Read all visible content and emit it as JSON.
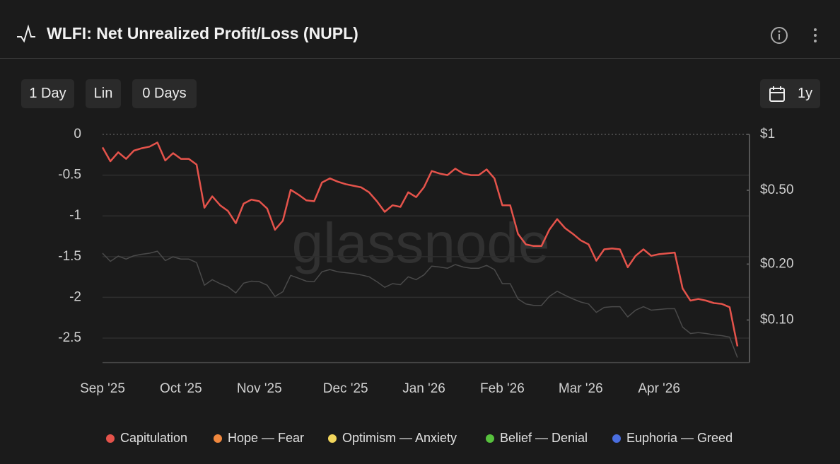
{
  "header": {
    "title": "WLFI: Net Unrealized Profit/Loss (NUPL)"
  },
  "controls": {
    "resolution": "1 Day",
    "scale": "Lin",
    "moving_average": "0 Days",
    "range": "1y"
  },
  "chart_data": {
    "type": "line",
    "watermark": "glassnode",
    "categories": [
      "Sep '25",
      null,
      null,
      null,
      null,
      null,
      null,
      null,
      null,
      null,
      "Oct '25",
      null,
      null,
      null,
      null,
      null,
      null,
      null,
      null,
      null,
      "Nov '25",
      null,
      null,
      null,
      null,
      null,
      null,
      null,
      null,
      null,
      null,
      "Dec '25",
      null,
      null,
      null,
      null,
      null,
      null,
      null,
      null,
      null,
      "Jan '26",
      null,
      null,
      null,
      null,
      null,
      null,
      null,
      null,
      null,
      "Feb '26",
      null,
      null,
      null,
      null,
      null,
      null,
      null,
      null,
      null,
      "Mar '26",
      null,
      null,
      null,
      null,
      null,
      null,
      null,
      null,
      null,
      "Apr '26",
      null,
      null,
      null,
      null,
      null,
      null,
      null,
      null,
      null,
      null
    ],
    "series": [
      {
        "color": "#e5534b",
        "values": [
          -0.16,
          -0.33,
          -0.22,
          -0.3,
          -0.2,
          -0.17,
          -0.15,
          -0.1,
          -0.32,
          -0.23,
          -0.3,
          -0.3,
          -0.37,
          -0.9,
          -0.76,
          -0.87,
          -0.94,
          -1.09,
          -0.85,
          -0.8,
          -0.82,
          -0.91,
          -1.17,
          -1.06,
          -0.68,
          -0.74,
          -0.81,
          -0.82,
          -0.59,
          -0.54,
          -0.58,
          -0.61,
          -0.63,
          -0.65,
          -0.71,
          -0.82,
          -0.95,
          -0.87,
          -0.89,
          -0.71,
          -0.77,
          -0.65,
          -0.45,
          -0.48,
          -0.5,
          -0.42,
          -0.48,
          -0.5,
          -0.5,
          -0.43,
          -0.54,
          -0.87,
          -0.87,
          -1.22,
          -1.35,
          -1.37,
          -1.37,
          -1.17,
          -1.04,
          -1.15,
          -1.22,
          -1.3,
          -1.35,
          -1.55,
          -1.41,
          -1.4,
          -1.41,
          -1.63,
          -1.49,
          -1.41,
          -1.49,
          -1.47,
          -1.46,
          -1.45,
          -1.89,
          -2.04,
          -2.02,
          -2.04,
          -2.07,
          -2.08,
          -2.12,
          -2.6
        ]
      },
      {
        "color": "#4a4a4a",
        "axis": "y2",
        "values": [
          0.229,
          0.207,
          0.221,
          0.213,
          0.222,
          0.226,
          0.229,
          0.235,
          0.209,
          0.219,
          0.213,
          0.213,
          0.204,
          0.154,
          0.165,
          0.157,
          0.151,
          0.14,
          0.158,
          0.162,
          0.161,
          0.154,
          0.134,
          0.142,
          0.174,
          0.168,
          0.162,
          0.161,
          0.182,
          0.187,
          0.182,
          0.18,
          0.178,
          0.175,
          0.171,
          0.161,
          0.15,
          0.157,
          0.155,
          0.171,
          0.165,
          0.175,
          0.195,
          0.193,
          0.19,
          0.199,
          0.193,
          0.19,
          0.19,
          0.197,
          0.187,
          0.157,
          0.157,
          0.13,
          0.122,
          0.12,
          0.12,
          0.134,
          0.143,
          0.136,
          0.13,
          0.125,
          0.122,
          0.11,
          0.117,
          0.118,
          0.118,
          0.104,
          0.113,
          0.118,
          0.113,
          0.114,
          0.115,
          0.115,
          0.0916,
          0.0846,
          0.0856,
          0.0846,
          0.0832,
          0.0824,
          0.0809,
          0.0628
        ]
      }
    ],
    "ylim": [
      -2.8,
      0
    ],
    "yticks": [
      0,
      -0.5,
      -1,
      -1.5,
      -2,
      -2.5
    ],
    "y2lim": [
      0.059,
      1
    ],
    "y2scale": "log",
    "y2ticks": [
      {
        "value": 1,
        "label": "$1"
      },
      {
        "value": 0.5,
        "label": "$0.50"
      },
      {
        "value": 0.2,
        "label": "$0.20"
      },
      {
        "value": 0.1,
        "label": "$0.10"
      }
    ],
    "grid": true,
    "legend_position": "bottom",
    "legend": [
      {
        "name": "Capitulation",
        "color": "#e5534b"
      },
      {
        "name": "Hope — Fear",
        "color": "#f0883e"
      },
      {
        "name": "Optimism — Anxiety",
        "color": "#f2d65c"
      },
      {
        "name": "Belief — Denial",
        "color": "#57c13d"
      },
      {
        "name": "Euphoria — Greed",
        "color": "#4a6ee0"
      }
    ]
  }
}
